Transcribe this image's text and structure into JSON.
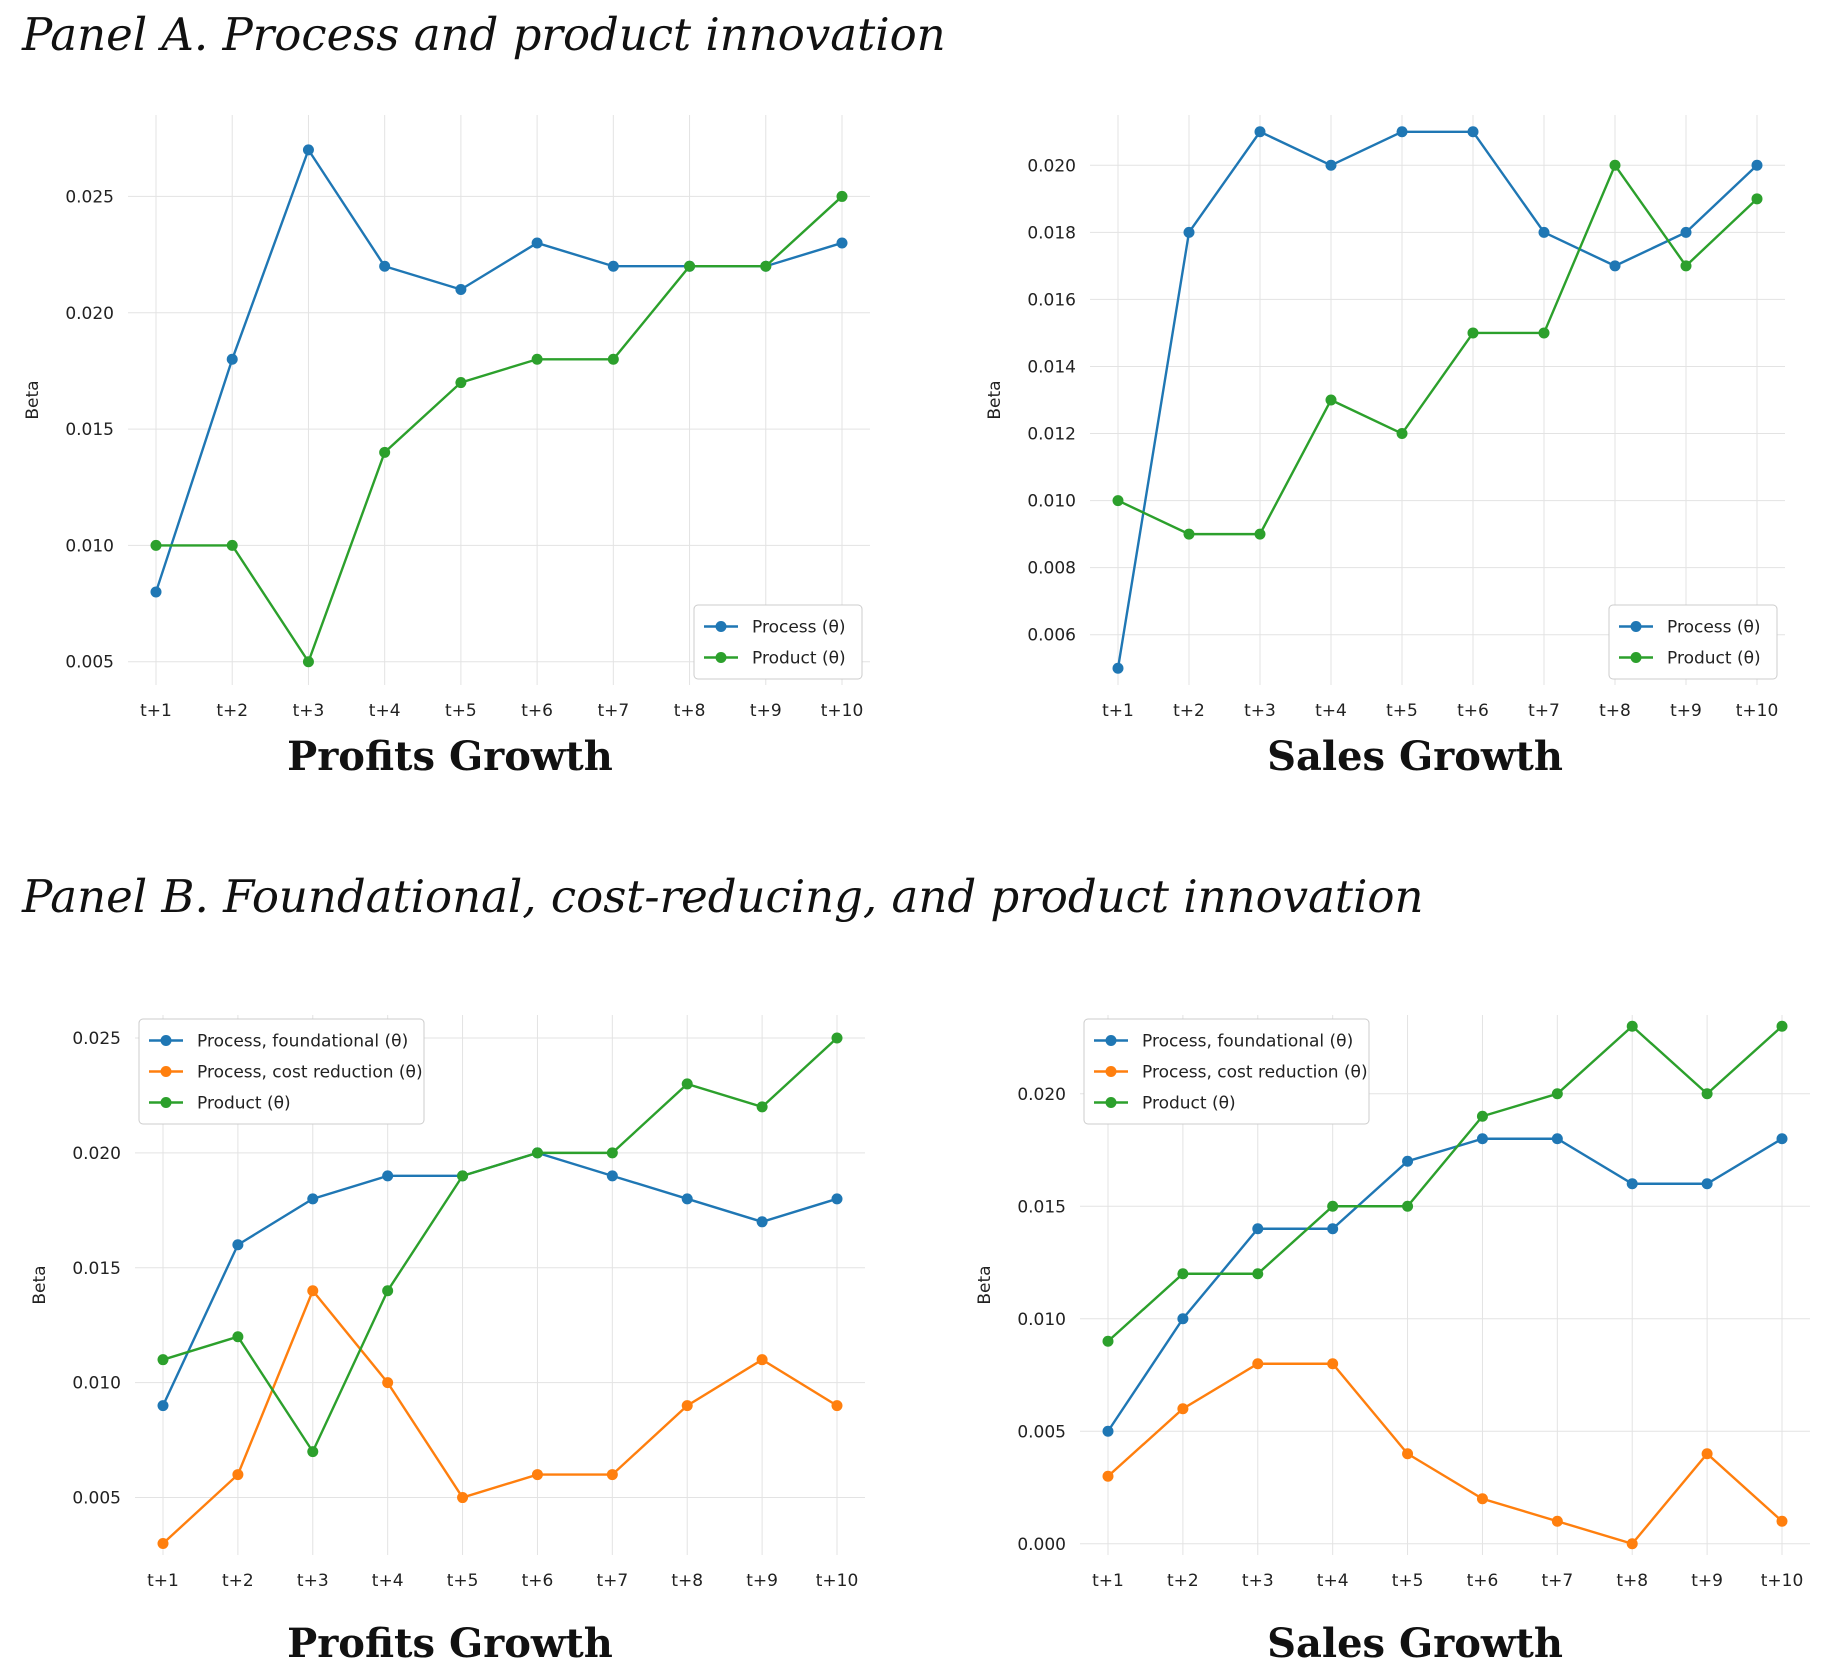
{
  "panels": [
    {
      "heading": "Panel A. Process and product innovation"
    },
    {
      "heading": "Panel B. Foundational, cost-reducing, and product innovation"
    }
  ],
  "colors": {
    "process": "#1f77b4",
    "cost_reduction": "#ff7f0e",
    "product": "#2ca02c"
  },
  "chart_data": [
    {
      "type": "line",
      "title": "Profits Growth",
      "ylabel": "Beta",
      "x": [
        "t+1",
        "t+2",
        "t+3",
        "t+4",
        "t+5",
        "t+6",
        "t+7",
        "t+8",
        "t+9",
        "t+10"
      ],
      "ylim": [
        0.004,
        0.0285
      ],
      "yticks": [
        0.005,
        0.01,
        0.015,
        0.02,
        0.025
      ],
      "ytick_labels": [
        "0.005",
        "0.010",
        "0.015",
        "0.020",
        "0.025"
      ],
      "grid": true,
      "legend_position": "lower-right",
      "series": [
        {
          "name": "Process (θ)",
          "color": "#1f77b4",
          "values": [
            0.008,
            0.018,
            0.027,
            0.022,
            0.021,
            0.023,
            0.022,
            0.022,
            0.022,
            0.023
          ]
        },
        {
          "name": "Product (θ)",
          "color": "#2ca02c",
          "values": [
            0.01,
            0.01,
            0.005,
            0.014,
            0.017,
            0.018,
            0.018,
            0.022,
            0.022,
            0.025
          ]
        }
      ]
    },
    {
      "type": "line",
      "title": "Sales Growth",
      "ylabel": "Beta",
      "x": [
        "t+1",
        "t+2",
        "t+3",
        "t+4",
        "t+5",
        "t+6",
        "t+7",
        "t+8",
        "t+9",
        "t+10"
      ],
      "ylim": [
        0.0045,
        0.0215
      ],
      "yticks": [
        0.006,
        0.008,
        0.01,
        0.012,
        0.014,
        0.016,
        0.018,
        0.02
      ],
      "ytick_labels": [
        "0.006",
        "0.008",
        "0.010",
        "0.012",
        "0.014",
        "0.016",
        "0.018",
        "0.020"
      ],
      "grid": true,
      "legend_position": "lower-right",
      "series": [
        {
          "name": "Process (θ)",
          "color": "#1f77b4",
          "values": [
            0.005,
            0.018,
            0.021,
            0.02,
            0.021,
            0.021,
            0.018,
            0.017,
            0.018,
            0.02
          ]
        },
        {
          "name": "Product (θ)",
          "color": "#2ca02c",
          "values": [
            0.01,
            0.009,
            0.009,
            0.013,
            0.012,
            0.015,
            0.015,
            0.02,
            0.017,
            0.019
          ]
        }
      ]
    },
    {
      "type": "line",
      "title": "Profits Growth",
      "ylabel": "Beta",
      "x": [
        "t+1",
        "t+2",
        "t+3",
        "t+4",
        "t+5",
        "t+6",
        "t+7",
        "t+8",
        "t+9",
        "t+10"
      ],
      "ylim": [
        0.0025,
        0.026
      ],
      "yticks": [
        0.005,
        0.01,
        0.015,
        0.02,
        0.025
      ],
      "ytick_labels": [
        "0.005",
        "0.010",
        "0.015",
        "0.020",
        "0.025"
      ],
      "grid": true,
      "legend_position": "upper-left",
      "series": [
        {
          "name": "Process, foundational (θ)",
          "color": "#1f77b4",
          "values": [
            0.009,
            0.016,
            0.018,
            0.019,
            0.019,
            0.02,
            0.019,
            0.018,
            0.017,
            0.018
          ]
        },
        {
          "name": "Process, cost reduction (θ)",
          "color": "#ff7f0e",
          "values": [
            0.003,
            0.006,
            0.014,
            0.01,
            0.005,
            0.006,
            0.006,
            0.009,
            0.011,
            0.009
          ]
        },
        {
          "name": "Product (θ)",
          "color": "#2ca02c",
          "values": [
            0.011,
            0.012,
            0.007,
            0.014,
            0.019,
            0.02,
            0.02,
            0.023,
            0.022,
            0.025
          ]
        }
      ]
    },
    {
      "type": "line",
      "title": "Sales Growth",
      "ylabel": "Beta",
      "x": [
        "t+1",
        "t+2",
        "t+3",
        "t+4",
        "t+5",
        "t+6",
        "t+7",
        "t+8",
        "t+9",
        "t+10"
      ],
      "ylim": [
        -0.0005,
        0.0235
      ],
      "yticks": [
        0.0,
        0.005,
        0.01,
        0.015,
        0.02
      ],
      "ytick_labels": [
        "0.000",
        "0.005",
        "0.010",
        "0.015",
        "0.020"
      ],
      "grid": true,
      "legend_position": "upper-left",
      "series": [
        {
          "name": "Process, foundational (θ)",
          "color": "#1f77b4",
          "values": [
            0.005,
            0.01,
            0.014,
            0.014,
            0.017,
            0.018,
            0.018,
            0.016,
            0.016,
            0.018
          ]
        },
        {
          "name": "Process, cost reduction (θ)",
          "color": "#ff7f0e",
          "values": [
            0.003,
            0.006,
            0.008,
            0.008,
            0.004,
            0.002,
            0.001,
            0.0,
            0.004,
            0.001
          ]
        },
        {
          "name": "Product (θ)",
          "color": "#2ca02c",
          "values": [
            0.009,
            0.012,
            0.012,
            0.015,
            0.015,
            0.019,
            0.02,
            0.023,
            0.02,
            0.023
          ]
        }
      ]
    }
  ]
}
